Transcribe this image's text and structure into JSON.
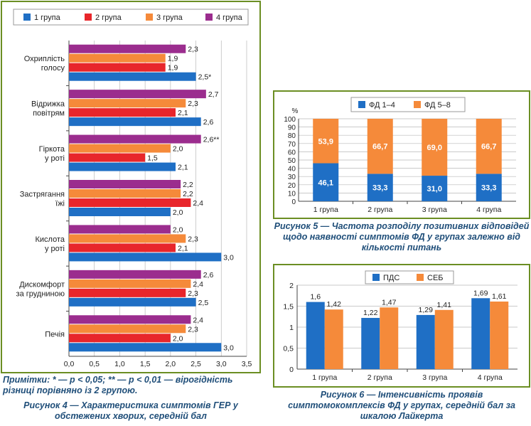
{
  "chart_data": [
    {
      "type": "bar",
      "orientation": "horizontal",
      "series_order_note": "",
      "legend": [
        "1 група",
        "2 група",
        "3 група",
        "4 група"
      ],
      "colors": [
        "#1f6fc5",
        "#e8262b",
        "#f58a3a",
        "#9b2d8e"
      ],
      "categories": [
        [
          "Охриплість",
          "голосу"
        ],
        [
          "Відрижка",
          "повітрям"
        ],
        [
          "Гіркота",
          "у роті"
        ],
        [
          "Застрягання",
          "їжі"
        ],
        [
          "Кислота",
          "у роті"
        ],
        [
          "Дискомфорт",
          "за грудниною"
        ],
        [
          "Печія"
        ]
      ],
      "series": [
        {
          "name": "1 група",
          "values": [
            2.5,
            2.6,
            2.1,
            2.0,
            3.0,
            2.5,
            3.0
          ],
          "labels": [
            "2,5*",
            "2,6",
            "2,1",
            "2,0",
            "3,0",
            "2,5",
            "3,0"
          ]
        },
        {
          "name": "2 група",
          "values": [
            1.9,
            2.1,
            1.5,
            2.4,
            2.1,
            2.3,
            2.0
          ],
          "labels": [
            "1,9",
            "2,1",
            "1,5",
            "2,4",
            "2,1",
            "2,3",
            "2,0"
          ]
        },
        {
          "name": "3 група",
          "values": [
            1.9,
            2.3,
            2.0,
            2.2,
            2.3,
            2.4,
            2.3
          ],
          "labels": [
            "1,9",
            "2,3",
            "2,0",
            "2,2",
            "2,3",
            "2,4",
            "2,3"
          ]
        },
        {
          "name": "4 група",
          "values": [
            2.3,
            2.7,
            2.6,
            2.2,
            2.0,
            2.6,
            2.4
          ],
          "labels": [
            "2,3",
            "2,7",
            "2,6**",
            "2,2",
            "2,0",
            "2,6",
            "2,4"
          ]
        }
      ],
      "xlim": [
        0,
        3.5
      ],
      "ticks": [
        "0,0",
        "0,5",
        "1,0",
        "1,5",
        "2,0",
        "2,5",
        "3,0",
        "3,5"
      ],
      "note": "Примітки: * — р < 0,05; ** — р < 0,01 — вірогідність різниці порівняно із 2 групою.",
      "caption": "Рисунок 4 — Характеристика симптомів ГЕР у обстежених хворих, середній бал"
    },
    {
      "type": "bar",
      "stacked": true,
      "legend": [
        "ФД 1–4",
        "ФД 5–8"
      ],
      "colors": [
        "#1f6fc5",
        "#f58a3a"
      ],
      "categories": [
        "1 група",
        "2 група",
        "3 група",
        "4 група"
      ],
      "series": [
        {
          "name": "ФД 1–4",
          "values": [
            46.1,
            33.3,
            31.0,
            33.3
          ],
          "labels": [
            "46,1",
            "33,3",
            "31,0",
            "33,3"
          ]
        },
        {
          "name": "ФД 5–8",
          "values": [
            53.9,
            66.7,
            69.0,
            66.7
          ],
          "labels": [
            "53,9",
            "66,7",
            "69,0",
            "66,7"
          ]
        }
      ],
      "ylabel": "%",
      "ylim": [
        0,
        100
      ],
      "ticks": [
        "0",
        "10",
        "20",
        "30",
        "40",
        "50",
        "60",
        "70",
        "80",
        "90",
        "100"
      ],
      "caption": "Рисунок 5 — Частота розподілу позитивних відповідей щодо наявності симптомів ФД у групах залежно від кількості питань"
    },
    {
      "type": "bar",
      "legend": [
        "ПДС",
        "СЕБ"
      ],
      "colors": [
        "#1f6fc5",
        "#f58a3a"
      ],
      "categories": [
        "1 група",
        "2 група",
        "3 група",
        "4 група"
      ],
      "series": [
        {
          "name": "ПДС",
          "values": [
            1.6,
            1.22,
            1.29,
            1.69
          ],
          "labels": [
            "1,6",
            "1,22",
            "1,29",
            "1,69"
          ]
        },
        {
          "name": "СЕБ",
          "values": [
            1.42,
            1.47,
            1.41,
            1.61
          ],
          "labels": [
            "1,42",
            "1,47",
            "1,41",
            "1,61"
          ]
        }
      ],
      "ylim": [
        0,
        2
      ],
      "ticks": [
        "0",
        "0,5",
        "1",
        "1,5",
        "2"
      ],
      "caption": "Рисунок 6 — Інтенсивність проявів симптомокомплексів ФД у групах, середній бал за шкалою Лайкерта"
    }
  ]
}
